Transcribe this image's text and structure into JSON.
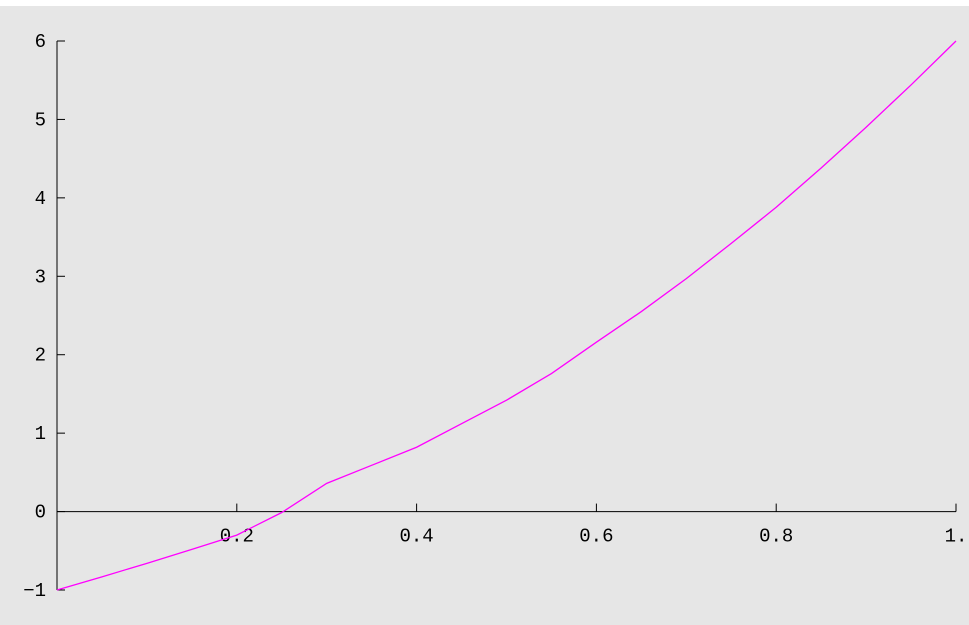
{
  "chart_data": {
    "type": "line",
    "title": "",
    "xlabel": "",
    "ylabel": "",
    "xlim": [
      0,
      1
    ],
    "ylim": [
      -1,
      6
    ],
    "x_ticks": [
      {
        "value": 0.2,
        "label": "0.2"
      },
      {
        "value": 0.4,
        "label": "0.4"
      },
      {
        "value": 0.6,
        "label": "0.6"
      },
      {
        "value": 0.8,
        "label": "0.8"
      },
      {
        "value": 1.0,
        "label": "1."
      }
    ],
    "y_ticks": [
      {
        "value": -1,
        "label": "−1"
      },
      {
        "value": 0,
        "label": "0"
      },
      {
        "value": 1,
        "label": "1"
      },
      {
        "value": 2,
        "label": "2"
      },
      {
        "value": 3,
        "label": "3"
      },
      {
        "value": 4,
        "label": "4"
      },
      {
        "value": 5,
        "label": "5"
      },
      {
        "value": 6,
        "label": "6"
      }
    ],
    "grid": false,
    "background_color": "#e6e6e6",
    "series": [
      {
        "color": "#ff00ff",
        "x": [
          0.0,
          0.05,
          0.1,
          0.15,
          0.2,
          0.25,
          0.3,
          0.35,
          0.4,
          0.45,
          0.5,
          0.55,
          0.6,
          0.65,
          0.7,
          0.75,
          0.8,
          0.85,
          0.9,
          0.95,
          1.0
        ],
        "y": [
          -1.0,
          -0.832,
          -0.66,
          -0.482,
          -0.3,
          -0.012,
          0.36,
          0.59,
          0.82,
          1.12,
          1.42,
          1.76,
          2.16,
          2.55,
          2.97,
          3.42,
          3.88,
          4.38,
          4.9,
          5.44,
          6.0
        ]
      }
    ]
  }
}
